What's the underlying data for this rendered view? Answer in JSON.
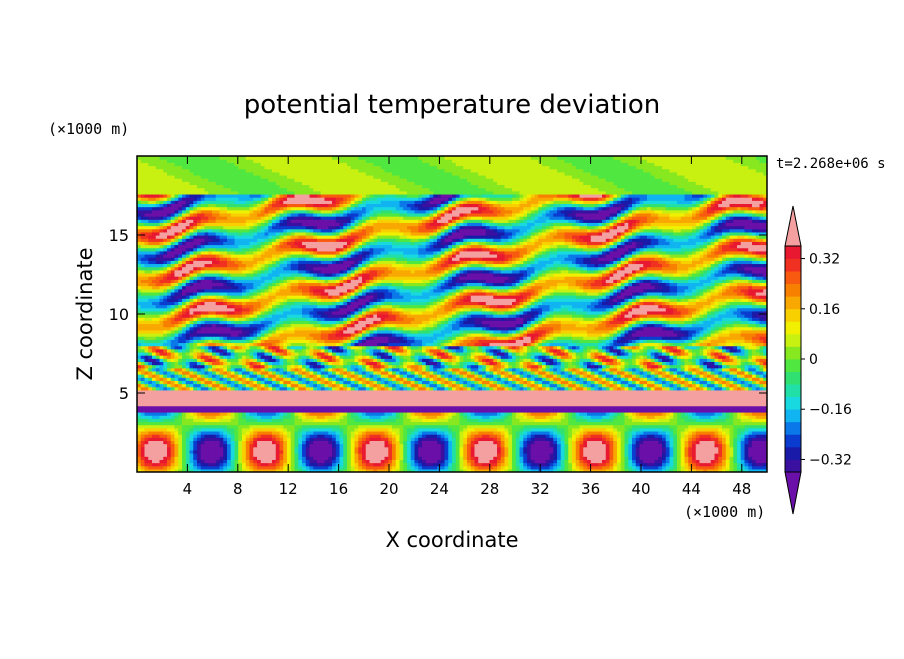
{
  "chart_data": {
    "type": "heatmap",
    "title": "potential temperature deviation",
    "xlabel": "X coordinate",
    "ylabel": "Z coordinate",
    "x_unit": "(×1000 m)",
    "y_unit": "(×1000 m)",
    "time_label": "t=2.268e+06 s",
    "xlim": [
      0,
      50
    ],
    "ylim": [
      0,
      20
    ],
    "x_ticks": [
      4,
      8,
      12,
      16,
      20,
      24,
      28,
      32,
      36,
      40,
      44,
      48
    ],
    "x_tick_labels": [
      "4",
      "8",
      "12",
      "16",
      "20",
      "24",
      "28",
      "32",
      "36",
      "40",
      "44",
      "48"
    ],
    "y_ticks": [
      5,
      10,
      15
    ],
    "y_tick_labels": [
      "5",
      "10",
      "15"
    ],
    "colorbar": {
      "levels": [
        -0.4,
        -0.36,
        -0.32,
        -0.28,
        -0.24,
        -0.2,
        -0.16,
        -0.12,
        -0.08,
        -0.04,
        0,
        0.04,
        0.08,
        0.12,
        0.16,
        0.2,
        0.24,
        0.28,
        0.32,
        0.36,
        0.4
      ],
      "colors": [
        "#6a0fa8",
        "#3a10a0",
        "#1a1aa8",
        "#0a3cd0",
        "#0a78e8",
        "#10b4f0",
        "#18d8e0",
        "#20e0a8",
        "#30e070",
        "#50e840",
        "#88e820",
        "#c8f010",
        "#f0f000",
        "#f8d000",
        "#f8a800",
        "#f88000",
        "#f85a10",
        "#f03020",
        "#e81830",
        "#f4a0a0"
      ],
      "tick_values": [
        0.32,
        0.16,
        0,
        -0.16,
        -0.32
      ],
      "tick_labels": [
        "0.32",
        "0.16",
        "0",
        "−0.16",
        "−0.32"
      ]
    }
  }
}
